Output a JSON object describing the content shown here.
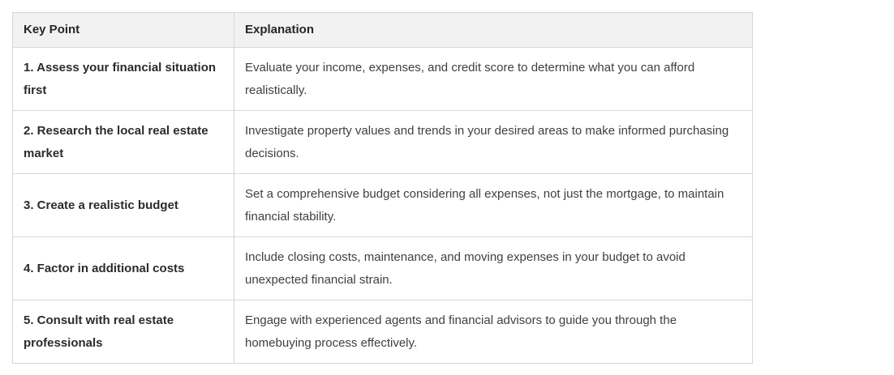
{
  "colors": {
    "header_background": "#f2f2f2",
    "border": "#d6d6d6",
    "key_point_text": "#2b2b2b",
    "explanation_text": "#3f3f3f",
    "page_background": "#ffffff"
  },
  "table": {
    "headers": {
      "key_point": "Key Point",
      "explanation": "Explanation"
    },
    "rows": [
      {
        "key_point": "1. Assess your financial situation first",
        "explanation": "Evaluate your income, expenses, and credit score to determine what you can afford realistically."
      },
      {
        "key_point": "2. Research the local real estate market",
        "explanation": "Investigate property values and trends in your desired areas to make informed purchasing decisions."
      },
      {
        "key_point": "3. Create a realistic budget",
        "explanation": "Set a comprehensive budget considering all expenses, not just the mortgage, to maintain financial stability."
      },
      {
        "key_point": "4. Factor in additional costs",
        "explanation": "Include closing costs, maintenance, and moving expenses in your budget to avoid unexpected financial strain."
      },
      {
        "key_point": "5. Consult with real estate professionals",
        "explanation": "Engage with experienced agents and financial advisors to guide you through the homebuying process effectively."
      }
    ]
  }
}
